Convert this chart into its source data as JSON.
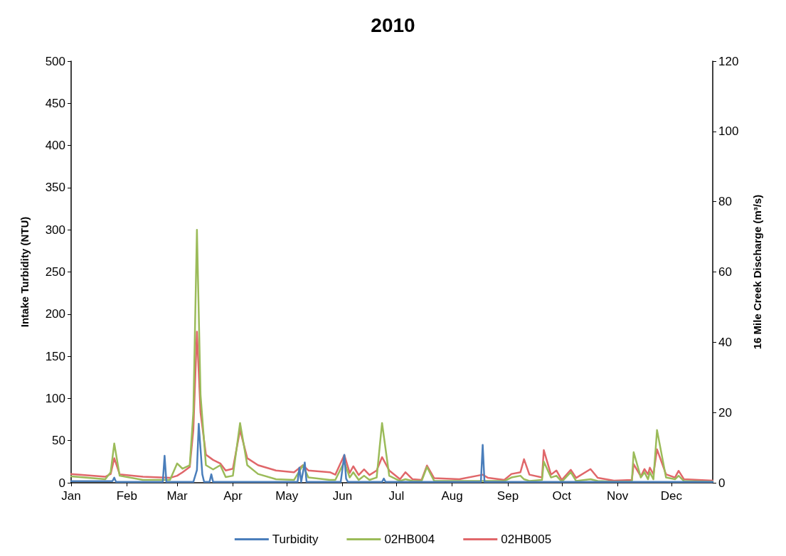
{
  "chart_data": {
    "type": "line",
    "title": "2010",
    "ylabel": "Intake Turbidity (NTU)",
    "y2label": "16 Mile Creek Discharge (m³/s)",
    "xlim": [
      "2010-01-01",
      "2010-12-24"
    ],
    "xticks": [
      {
        "value": "2010-01-01",
        "label": "Jan"
      },
      {
        "value": "2010-02-01",
        "label": "Feb"
      },
      {
        "value": "2010-03-01",
        "label": "Mar"
      },
      {
        "value": "2010-04-01",
        "label": "Apr"
      },
      {
        "value": "2010-05-01",
        "label": "May"
      },
      {
        "value": "2010-06-01",
        "label": "Jun"
      },
      {
        "value": "2010-07-01",
        "label": "Jul"
      },
      {
        "value": "2010-08-01",
        "label": "Aug"
      },
      {
        "value": "2010-09-01",
        "label": "Sep"
      },
      {
        "value": "2010-10-01",
        "label": "Oct"
      },
      {
        "value": "2010-11-01",
        "label": "Nov"
      },
      {
        "value": "2010-12-01",
        "label": "Dec"
      }
    ],
    "ylim": [
      0,
      500
    ],
    "yticks": [
      0,
      50,
      100,
      150,
      200,
      250,
      300,
      350,
      400,
      450,
      500
    ],
    "y2lim": [
      0,
      120
    ],
    "y2ticks": [
      0,
      20,
      40,
      60,
      80,
      100,
      120
    ],
    "grid": false,
    "legend": "bottom",
    "marker": "none",
    "line_style": "solid",
    "x": [
      "2010-01-01",
      "2010-01-20",
      "2010-01-23",
      "2010-01-25",
      "2010-01-28",
      "2010-02-10",
      "2010-02-25",
      "2010-03-01",
      "2010-03-04",
      "2010-03-08",
      "2010-03-10",
      "2010-03-12",
      "2010-03-14",
      "2010-03-17",
      "2010-03-21",
      "2010-03-25",
      "2010-03-28",
      "2010-04-01",
      "2010-04-05",
      "2010-04-09",
      "2010-04-15",
      "2010-04-25",
      "2010-05-05",
      "2010-05-10",
      "2010-05-13",
      "2010-05-25",
      "2010-05-28",
      "2010-06-02",
      "2010-06-05",
      "2010-06-07",
      "2010-06-10",
      "2010-06-13",
      "2010-06-16",
      "2010-06-20",
      "2010-06-23",
      "2010-06-27",
      "2010-07-03",
      "2010-07-06",
      "2010-07-10",
      "2010-07-15",
      "2010-07-18",
      "2010-07-22",
      "2010-08-05",
      "2010-08-18",
      "2010-08-21",
      "2010-08-30",
      "2010-09-03",
      "2010-09-08",
      "2010-09-10",
      "2010-09-13",
      "2010-09-20",
      "2010-09-21",
      "2010-09-25",
      "2010-09-28",
      "2010-10-01",
      "2010-10-06",
      "2010-10-09",
      "2010-10-17",
      "2010-10-21",
      "2010-10-30",
      "2010-11-09",
      "2010-11-10",
      "2010-11-14",
      "2010-11-16",
      "2010-11-18",
      "2010-11-19",
      "2010-11-21",
      "2010-11-23",
      "2010-11-28",
      "2010-12-03",
      "2010-12-05",
      "2010-12-08",
      "2010-12-24"
    ],
    "series": [
      {
        "name": "Turbidity",
        "color": "#4a7ebb",
        "x": [
          "2010-01-01",
          "2010-01-24",
          "2010-01-25",
          "2010-01-26",
          "2010-02-21",
          "2010-02-22",
          "2010-02-23",
          "2010-03-10",
          "2010-03-12",
          "2010-03-13",
          "2010-03-15",
          "2010-03-16",
          "2010-03-19",
          "2010-03-20",
          "2010-03-21",
          "2010-05-07",
          "2010-05-08",
          "2010-05-09",
          "2010-05-11",
          "2010-05-12",
          "2010-05-31",
          "2010-06-02",
          "2010-06-03",
          "2010-06-04",
          "2010-06-23",
          "2010-06-24",
          "2010-06-25",
          "2010-08-17",
          "2010-08-18",
          "2010-08-19",
          "2010-12-24"
        ],
        "values": [
          2,
          2,
          6,
          1,
          1,
          32,
          1,
          1,
          15,
          70,
          10,
          1,
          1,
          10,
          1,
          1,
          18,
          1,
          24,
          1,
          1,
          33,
          5,
          1,
          1,
          5,
          1,
          1,
          45,
          1,
          1
        ]
      },
      {
        "name": "02HB004",
        "color": "#9bbb59",
        "axis": "y2",
        "values": [
          1.8,
          1.0,
          3.0,
          11.2,
          2.0,
          0.8,
          0.8,
          5.5,
          4.0,
          5.0,
          20,
          72,
          25,
          5.0,
          3.8,
          5.0,
          1.6,
          2.0,
          17,
          5.0,
          2.5,
          1.0,
          0.8,
          5.0,
          1.5,
          0.8,
          0.8,
          6.0,
          1.5,
          3.0,
          0.8,
          2.0,
          0.8,
          1.5,
          17,
          2.0,
          0.5,
          1.0,
          0.5,
          0.5,
          4.5,
          0.5,
          0.5,
          0.5,
          0.5,
          0.5,
          1.5,
          2.0,
          1.0,
          0.5,
          0.8,
          6.0,
          1.5,
          2.0,
          0.3,
          3.0,
          0.5,
          1.0,
          0.5,
          0.3,
          0.4,
          8.7,
          1.5,
          3.0,
          1.0,
          3.0,
          1.0,
          15,
          1.5,
          1.0,
          2.0,
          0.5,
          0.3
        ]
      },
      {
        "name": "02HB005",
        "color": "#e0676a",
        "axis": "y2",
        "values": [
          2.5,
          1.7,
          2.5,
          7.0,
          2.4,
          1.7,
          1.4,
          2.0,
          3.0,
          4.5,
          15,
          43,
          20,
          8.0,
          6.5,
          5.5,
          3.5,
          4.0,
          15,
          7.0,
          5.0,
          3.5,
          3.0,
          5.0,
          3.5,
          3.0,
          2.3,
          7.9,
          2.8,
          4.7,
          2.2,
          3.8,
          2.2,
          3.5,
          7.3,
          3.5,
          1.0,
          3.0,
          1.0,
          0.8,
          4.9,
          1.3,
          1.0,
          2.3,
          1.4,
          0.8,
          2.5,
          3.0,
          6.7,
          2.3,
          1.5,
          9.3,
          2.3,
          3.5,
          0.8,
          3.7,
          1.4,
          3.9,
          1.4,
          0.6,
          0.8,
          5.3,
          1.8,
          3.9,
          2.4,
          4.3,
          2.4,
          9.5,
          2.4,
          1.5,
          3.4,
          1.0,
          0.6
        ]
      }
    ]
  }
}
